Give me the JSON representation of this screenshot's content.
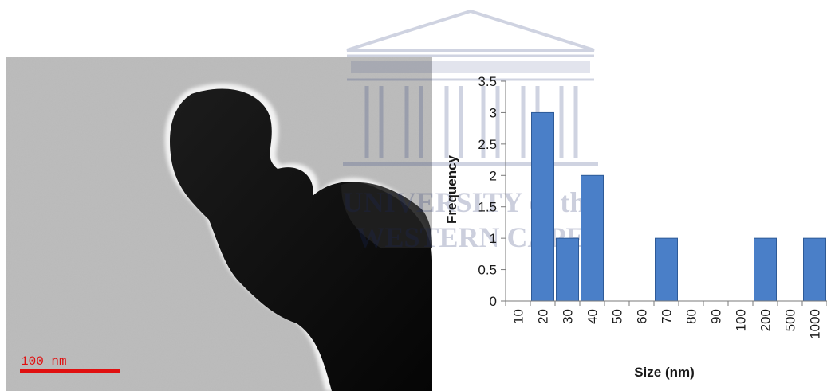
{
  "image": {
    "scale_bar_label": "100 nm",
    "scale_bar_color": "#e01010"
  },
  "watermark": {
    "line1": "UNIVERSITY of the",
    "line2": "WESTERN CAPE"
  },
  "chart_data": {
    "type": "bar",
    "title": "",
    "xlabel": "Size (nm)",
    "ylabel": "Frequency",
    "categories": [
      "10",
      "20",
      "30",
      "40",
      "50",
      "60",
      "70",
      "80",
      "90",
      "100",
      "200",
      "500",
      "1000"
    ],
    "values": [
      0,
      3,
      1,
      2,
      0,
      0,
      1,
      0,
      0,
      0,
      1,
      0,
      1
    ],
    "ylim": [
      0,
      3.5
    ],
    "yticks": [
      "0",
      "0.5",
      "1",
      "1.5",
      "2",
      "2.5",
      "3",
      "3.5"
    ],
    "grid": false,
    "legend": "none",
    "bar_color": "#4a7fc8",
    "bar_edge_color": "#2d5a98"
  }
}
